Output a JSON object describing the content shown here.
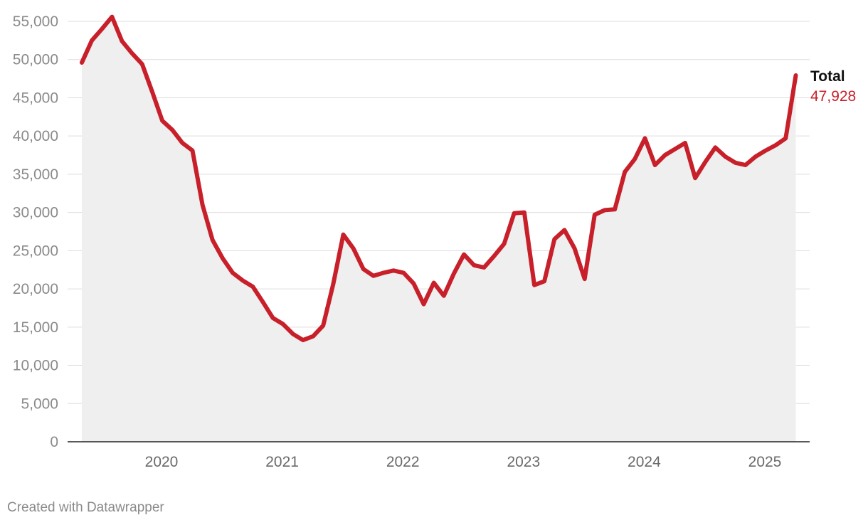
{
  "credit": "Created with Datawrapper",
  "chart_data": {
    "type": "line",
    "title": "",
    "xlabel": "",
    "ylabel": "",
    "ylim": [
      0,
      55000
    ],
    "yticks": [
      0,
      5000,
      10000,
      15000,
      20000,
      25000,
      30000,
      35000,
      40000,
      45000,
      50000,
      55000
    ],
    "ytick_labels": [
      "0",
      "5,000",
      "10,000",
      "15,000",
      "20,000",
      "25,000",
      "30,000",
      "35,000",
      "40,000",
      "45,000",
      "50,000",
      "55,000"
    ],
    "xticks": [
      2020,
      2021,
      2022,
      2023,
      2024,
      2025
    ],
    "xtick_labels": [
      "2020",
      "2021",
      "2022",
      "2023",
      "2024",
      "2025"
    ],
    "grid": true,
    "area_fill": true,
    "colors": {
      "line": "#c8202a",
      "area": "#efefef",
      "grid": "#dddddd",
      "axis": "#222222"
    },
    "series": [
      {
        "name": "Total",
        "end_label": "47,928",
        "x": [
          "2019-05-01",
          "2019-06-01",
          "2019-07-01",
          "2019-08-01",
          "2019-09-01",
          "2019-10-01",
          "2019-11-01",
          "2019-12-01",
          "2020-01-01",
          "2020-02-01",
          "2020-03-01",
          "2020-04-01",
          "2020-05-01",
          "2020-06-01",
          "2020-07-01",
          "2020-08-01",
          "2020-09-01",
          "2020-10-01",
          "2020-11-01",
          "2020-12-01",
          "2021-01-01",
          "2021-02-01",
          "2021-03-01",
          "2021-04-01",
          "2021-05-01",
          "2021-06-01",
          "2021-07-01",
          "2021-08-01",
          "2021-09-01",
          "2021-10-01",
          "2021-11-01",
          "2021-12-01",
          "2022-01-01",
          "2022-02-01",
          "2022-03-01",
          "2022-04-01",
          "2022-05-01",
          "2022-06-01",
          "2022-07-01",
          "2022-08-01",
          "2022-09-01",
          "2022-10-01",
          "2022-11-01",
          "2022-12-01",
          "2023-01-01",
          "2023-02-01",
          "2023-03-01",
          "2023-04-01",
          "2023-05-01",
          "2023-06-01",
          "2023-07-01",
          "2023-08-01",
          "2023-09-01",
          "2023-10-01",
          "2023-11-01",
          "2023-12-01",
          "2024-01-01",
          "2024-02-01",
          "2024-03-01",
          "2024-04-01",
          "2024-05-01",
          "2024-06-01",
          "2024-07-01",
          "2024-08-01",
          "2024-09-01",
          "2024-10-01",
          "2024-11-01",
          "2024-12-01",
          "2025-01-01",
          "2025-02-01",
          "2025-03-01",
          "2025-04-01"
        ],
        "values": [
          49600,
          52500,
          54000,
          55600,
          52400,
          50800,
          49400,
          45800,
          42000,
          40800,
          39100,
          38100,
          31000,
          26400,
          24000,
          22100,
          21100,
          20300,
          18300,
          16200,
          15400,
          14100,
          13300,
          13800,
          15200,
          20600,
          27100,
          25300,
          22600,
          21700,
          22100,
          22400,
          22100,
          20700,
          18000,
          20800,
          19100,
          22000,
          24500,
          23100,
          22800,
          24300,
          25900,
          29900,
          30000,
          20500,
          21000,
          26500,
          27700,
          25300,
          21300,
          29700,
          30300,
          30400,
          35300,
          37000,
          39700,
          36200,
          37500,
          38300,
          39100,
          34500,
          36600,
          38500,
          37300,
          36500,
          36200,
          37300,
          38100,
          38800,
          39700,
          47928
        ]
      }
    ]
  }
}
